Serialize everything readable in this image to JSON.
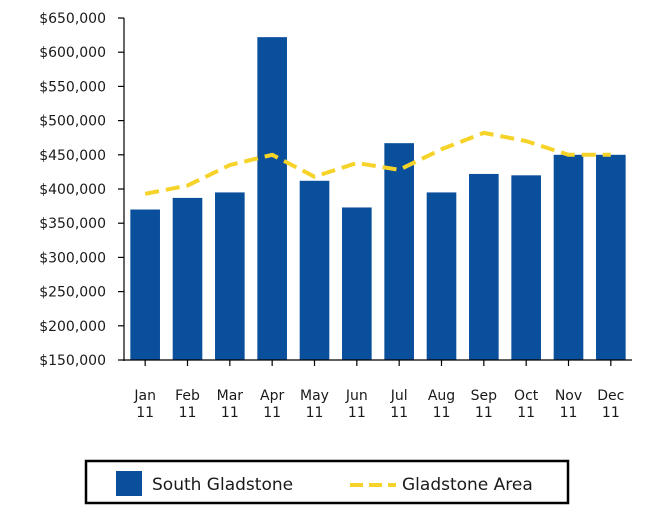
{
  "chart_data": {
    "type": "bar",
    "categories": [
      [
        "Jan",
        "11"
      ],
      [
        "Feb",
        "11"
      ],
      [
        "Mar",
        "11"
      ],
      [
        "Apr",
        "11"
      ],
      [
        "May",
        "11"
      ],
      [
        "Jun",
        "11"
      ],
      [
        "Jul",
        "11"
      ],
      [
        "Aug",
        "11"
      ],
      [
        "Sep",
        "11"
      ],
      [
        "Oct",
        "11"
      ],
      [
        "Nov",
        "11"
      ],
      [
        "Dec",
        "11"
      ]
    ],
    "ylim": [
      150000,
      650000
    ],
    "yticks": [
      650000,
      600000,
      550000,
      500000,
      450000,
      400000,
      350000,
      300000,
      250000,
      200000,
      150000
    ],
    "ytick_labels": [
      "$650,000",
      "$600,000",
      "$550,000",
      "$500,000",
      "$450,000",
      "$400,000",
      "$350,000",
      "$300,000",
      "$250,000",
      "$200,000",
      "$150,000"
    ],
    "grid": false,
    "legend_position": "bottom",
    "series": [
      {
        "name": "South Gladstone",
        "type": "bar",
        "color": "#0a4f9c",
        "values": [
          370000,
          387000,
          395000,
          622000,
          412000,
          373000,
          467000,
          395000,
          422000,
          420000,
          450000,
          450000
        ]
      },
      {
        "name": "Gladstone Area",
        "type": "line",
        "style": "dashed",
        "color": "#f5d329",
        "values": [
          393000,
          405000,
          435000,
          450000,
          418000,
          438000,
          428000,
          458000,
          482000,
          470000,
          450000,
          450000
        ]
      }
    ]
  }
}
